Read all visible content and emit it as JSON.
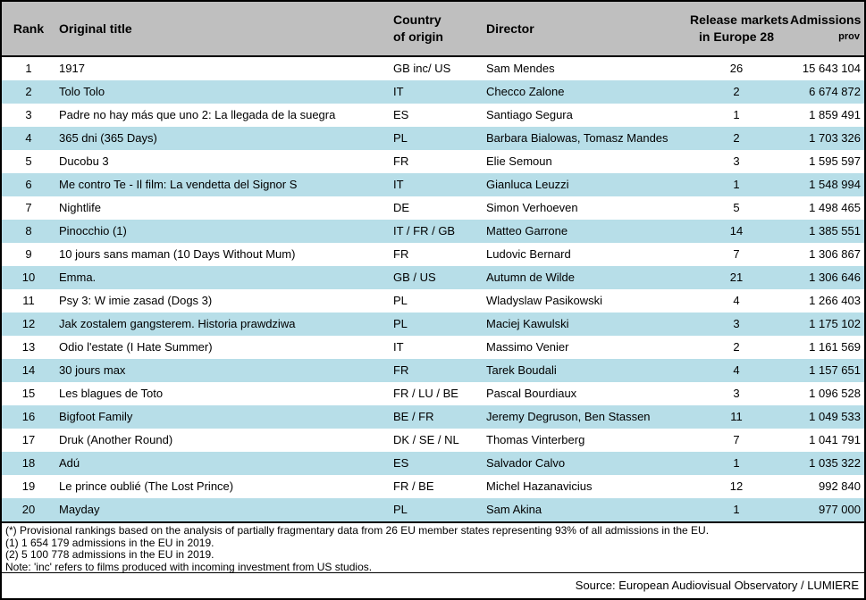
{
  "chart_data": {
    "type": "table",
    "columns": [
      "Rank",
      "Original title",
      "Country of origin",
      "Director",
      "Release markets in Europe 28",
      "Admissions prov"
    ],
    "rows": [
      {
        "rank": "1",
        "title": "1917",
        "country": "GB inc/ US",
        "director": "Sam Mendes",
        "markets": "26",
        "admissions": "15 643 104"
      },
      {
        "rank": "2",
        "title": "Tolo Tolo",
        "country": "IT",
        "director": "Checco Zalone",
        "markets": "2",
        "admissions": "6 674 872"
      },
      {
        "rank": "3",
        "title": "Padre no hay más que uno 2: La llegada de la suegra",
        "country": "ES",
        "director": "Santiago Segura",
        "markets": "1",
        "admissions": "1 859 491"
      },
      {
        "rank": "4",
        "title": "365 dni (365 Days)",
        "country": "PL",
        "director": "Barbara Bialowas, Tomasz Mandes",
        "markets": "2",
        "admissions": "1 703 326"
      },
      {
        "rank": "5",
        "title": "Ducobu 3",
        "country": "FR",
        "director": "Elie Semoun",
        "markets": "3",
        "admissions": "1 595 597"
      },
      {
        "rank": "6",
        "title": "Me contro Te - Il film: La vendetta del Signor S",
        "country": "IT",
        "director": "Gianluca Leuzzi",
        "markets": "1",
        "admissions": "1 548 994"
      },
      {
        "rank": "7",
        "title": "Nightlife",
        "country": "DE",
        "director": "Simon Verhoeven",
        "markets": "5",
        "admissions": "1 498 465"
      },
      {
        "rank": "8",
        "title": "Pinocchio (1)",
        "country": "IT / FR / GB",
        "director": "Matteo Garrone",
        "markets": "14",
        "admissions": "1 385 551"
      },
      {
        "rank": "9",
        "title": "10 jours sans maman (10 Days Without Mum)",
        "country": "FR",
        "director": "Ludovic Bernard",
        "markets": "7",
        "admissions": "1 306 867"
      },
      {
        "rank": "10",
        "title": "Emma.",
        "country": "GB / US",
        "director": "Autumn de Wilde",
        "markets": "21",
        "admissions": "1 306 646"
      },
      {
        "rank": "11",
        "title": "Psy 3: W imie zasad (Dogs 3)",
        "country": "PL",
        "director": "Wladyslaw Pasikowski",
        "markets": "4",
        "admissions": "1 266 403"
      },
      {
        "rank": "12",
        "title": "Jak zostalem gangsterem. Historia prawdziwa",
        "country": "PL",
        "director": "Maciej Kawulski",
        "markets": "3",
        "admissions": "1 175 102"
      },
      {
        "rank": "13",
        "title": "Odio l'estate (I Hate Summer)",
        "country": "IT",
        "director": "Massimo Venier",
        "markets": "2",
        "admissions": "1 161 569"
      },
      {
        "rank": "14",
        "title": "30 jours max",
        "country": "FR",
        "director": "Tarek Boudali",
        "markets": "4",
        "admissions": "1 157 651"
      },
      {
        "rank": "15",
        "title": "Les blagues de Toto",
        "country": "FR / LU / BE",
        "director": "Pascal Bourdiaux",
        "markets": "3",
        "admissions": "1 096 528"
      },
      {
        "rank": "16",
        "title": "Bigfoot Family",
        "country": "BE / FR",
        "director": "Jeremy Degruson, Ben Stassen",
        "markets": "11",
        "admissions": "1 049 533"
      },
      {
        "rank": "17",
        "title": "Druk (Another Round)",
        "country": "DK / SE / NL",
        "director": "Thomas Vinterberg",
        "markets": "7",
        "admissions": "1 041 791"
      },
      {
        "rank": "18",
        "title": "Adú",
        "country": "ES",
        "director": "Salvador Calvo",
        "markets": "1",
        "admissions": "1 035 322"
      },
      {
        "rank": "19",
        "title": "Le prince oublié (The Lost Prince)",
        "country": "FR / BE",
        "director": "Michel Hazanavicius",
        "markets": "12",
        "admissions": "992 840"
      },
      {
        "rank": "20",
        "title": "Mayday",
        "country": "PL",
        "director": "Sam Akina",
        "markets": "1",
        "admissions": "977 000"
      }
    ]
  },
  "header": {
    "rank": "Rank",
    "title": "Original title",
    "country_line1": "Country",
    "country_line2": "of origin",
    "director": "Director",
    "markets_line1": "Release markets",
    "markets_line2": "in Europe 28",
    "admissions_line1": "Admissions",
    "admissions_line2": "prov"
  },
  "footnotes": [
    "(*) Provisional rankings based on the analysis of partially fragmentary data from 26 EU member states representing 93% of all admissions in the EU.",
    "(1) 1 654 179  admissions in the EU in 2019.",
    "(2) 5 100 778 admissions in the EU in 2019.",
    "Note: 'inc' refers to films produced with incoming investment from US studios."
  ],
  "source": "Source: European Audiovisual Observatory / LUMIERE",
  "colors": {
    "header_bg": "#BFBFBF",
    "row_band_bg": "#B7DEE8",
    "border": "#000000",
    "text": "#000000"
  }
}
